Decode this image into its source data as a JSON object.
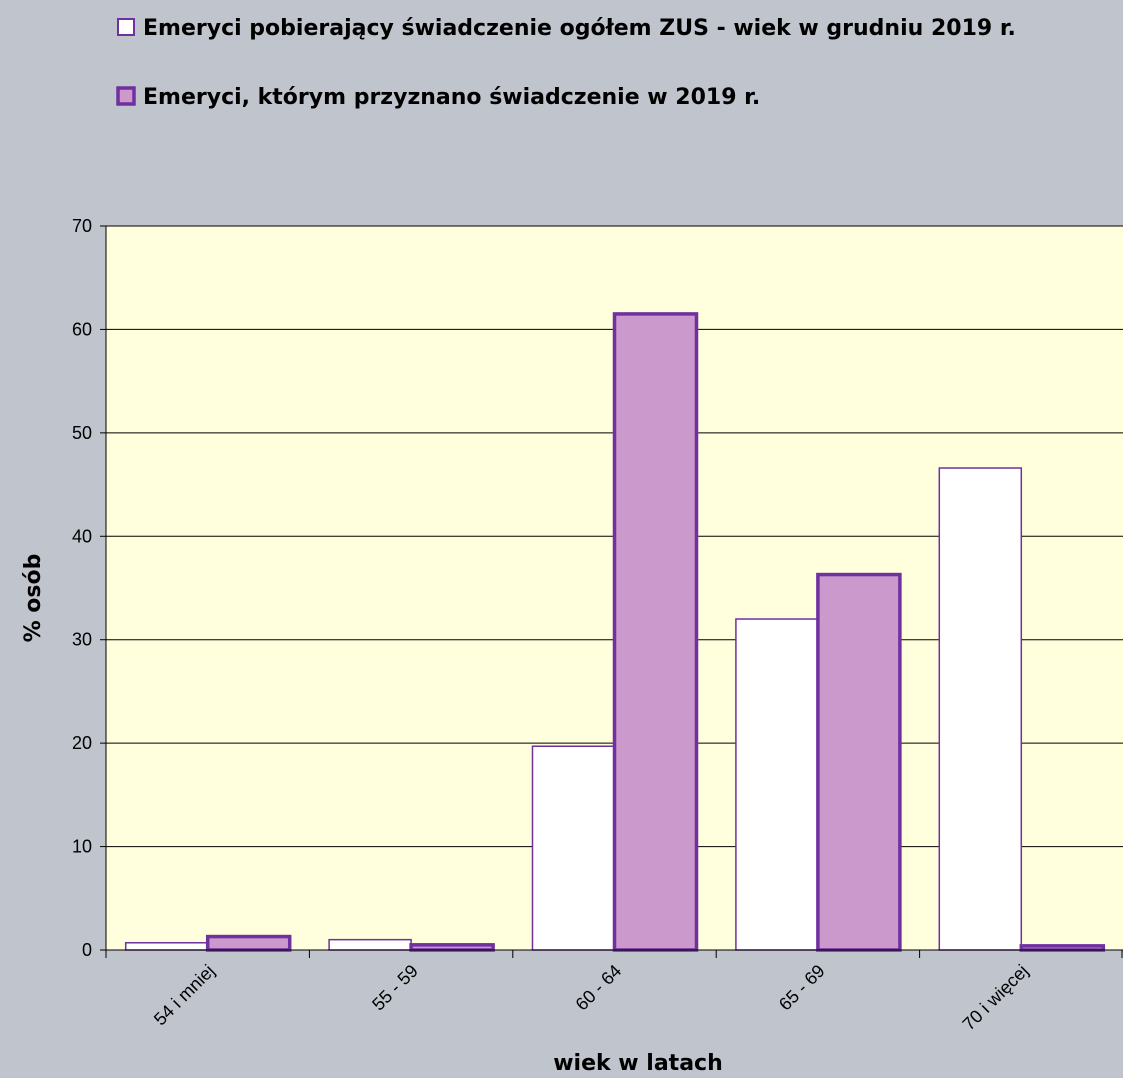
{
  "chart_data": {
    "type": "bar",
    "categories": [
      "54 i mniej",
      "55 - 59",
      "60 - 64",
      "65 - 69",
      "70 i więcej"
    ],
    "series": [
      {
        "name": "Emeryci pobierający świadczenie ogółem ZUS - wiek w grudniu 2019 r.",
        "values": [
          0.7,
          1.0,
          19.7,
          32.0,
          46.6
        ],
        "color": "#ffffff",
        "stroke": "#7030a0"
      },
      {
        "name": "Emeryci, którym przyznano świadczenie w 2019 r.",
        "values": [
          1.3,
          0.5,
          61.5,
          36.3,
          0.4
        ],
        "color": "#cc99cc",
        "stroke": "#7030a0"
      }
    ],
    "xlabel": "wiek w latach",
    "ylabel": "% osób",
    "ylim": [
      0,
      70
    ],
    "yticks": [
      "0",
      "10",
      "20",
      "30",
      "40",
      "50",
      "60",
      "70"
    ],
    "grid": true,
    "legend": "top",
    "plot_background": "#ffffdd",
    "page_background": "#bfc4cd"
  }
}
